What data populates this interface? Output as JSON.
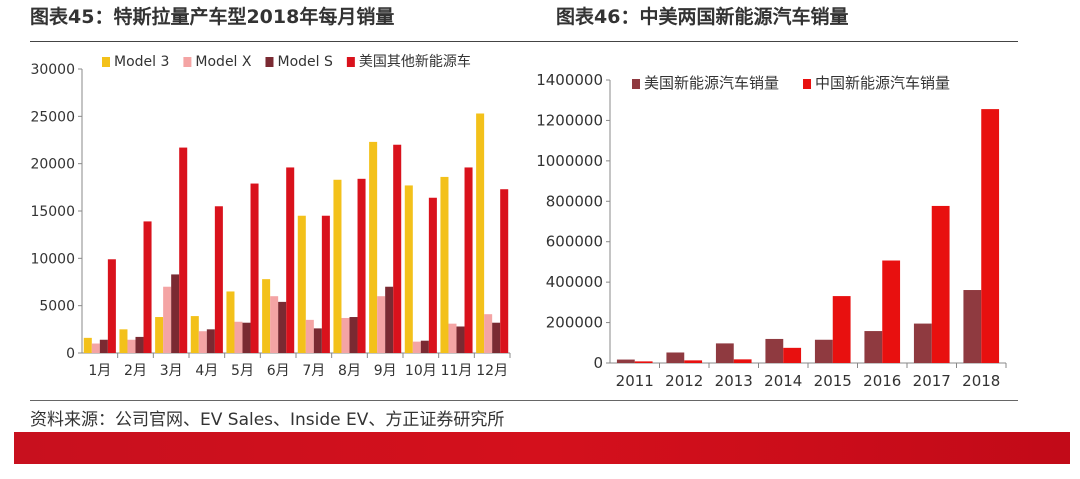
{
  "titles": {
    "left": "图表45：特斯拉量产车型2018年每月销量",
    "right": "图表46：中美两国新能源汽车销量"
  },
  "source": "资料来源：公司官网、EV Sales、Inside EV、方正证券研究所",
  "colors": {
    "model3": "#f3c11a",
    "modelx": "#f4a4a4",
    "models": "#7a2a32",
    "us_other": "#d9121c",
    "us_nev": "#8f3a40",
    "cn_nev": "#e8100f",
    "band": "#c8101e"
  },
  "chart_data": [
    {
      "type": "bar",
      "categories": [
        "1月",
        "2月",
        "3月",
        "4月",
        "5月",
        "6月",
        "7月",
        "8月",
        "9月",
        "10月",
        "11月",
        "12月"
      ],
      "series": [
        {
          "name": "Model 3",
          "color": "#f3c11a",
          "values": [
            1600,
            2500,
            3800,
            3900,
            6500,
            7800,
            14500,
            18300,
            22300,
            17700,
            18600,
            25300
          ]
        },
        {
          "name": "Model X",
          "color": "#f4a4a4",
          "values": [
            1000,
            1400,
            7000,
            2300,
            3300,
            6000,
            3500,
            3700,
            6000,
            1200,
            3100,
            4100
          ]
        },
        {
          "name": "Model S",
          "color": "#7a2a32",
          "values": [
            1400,
            1700,
            8300,
            2500,
            3200,
            5400,
            2600,
            3800,
            7000,
            1300,
            2800,
            3200
          ]
        },
        {
          "name": "美国其他新能源车",
          "color": "#d9121c",
          "values": [
            9900,
            13900,
            21700,
            15500,
            17900,
            19600,
            14500,
            18400,
            22000,
            16400,
            19600,
            17300
          ]
        }
      ],
      "ylim": [
        0,
        30000
      ],
      "yticks": [
        "0",
        "5000",
        "10000",
        "15000",
        "20000",
        "25000",
        "30000"
      ],
      "grid": false,
      "legend": "top"
    },
    {
      "type": "bar",
      "categories": [
        "2011",
        "2012",
        "2013",
        "2014",
        "2015",
        "2016",
        "2017",
        "2018"
      ],
      "series": [
        {
          "name": "美国新能源汽车销量",
          "color": "#8f3a40",
          "values": [
            17000,
            52000,
            97000,
            119000,
            115000,
            158000,
            195000,
            361000
          ]
        },
        {
          "name": "中国新能源汽车销量",
          "color": "#e8100f",
          "values": [
            8000,
            13000,
            18000,
            75000,
            331000,
            507000,
            777000,
            1256000
          ]
        }
      ],
      "ylim": [
        0,
        1400000
      ],
      "yticks": [
        "0",
        "200000",
        "400000",
        "600000",
        "800000",
        "1000000",
        "1200000",
        "1400000"
      ],
      "grid": false,
      "legend": "top"
    }
  ]
}
